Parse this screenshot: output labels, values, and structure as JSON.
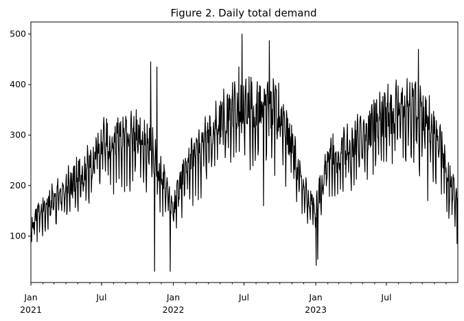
{
  "chart_data": {
    "type": "line",
    "title": "Figure 2. Daily total demand",
    "xlabel": "",
    "ylabel": "",
    "grid": false,
    "legend": "none",
    "line_color": "#000000",
    "xlim": [
      "2021-01-01",
      "2023-12-31"
    ],
    "ylim": [
      8,
      524
    ],
    "y_ticks": [
      100,
      200,
      300,
      400,
      500
    ],
    "x_major_ticks": [
      {
        "date": "2021-01-01",
        "label": "Jan",
        "year": "2021"
      },
      {
        "date": "2021-07-01",
        "label": "Jul",
        "year": ""
      },
      {
        "date": "2022-01-01",
        "label": "Jan",
        "year": "2022"
      },
      {
        "date": "2022-07-01",
        "label": "Jul",
        "year": ""
      },
      {
        "date": "2023-01-01",
        "label": "Jan",
        "year": "2023"
      },
      {
        "date": "2023-07-01",
        "label": "Jul",
        "year": ""
      }
    ],
    "trend": [
      [
        "2021-01-01",
        115
      ],
      [
        "2021-02-01",
        150
      ],
      [
        "2021-03-01",
        165
      ],
      [
        "2021-04-01",
        190
      ],
      [
        "2021-05-01",
        205
      ],
      [
        "2021-06-01",
        235
      ],
      [
        "2021-07-01",
        265
      ],
      [
        "2021-08-01",
        275
      ],
      [
        "2021-09-01",
        275
      ],
      [
        "2021-10-01",
        285
      ],
      [
        "2021-11-01",
        270
      ],
      [
        "2021-12-01",
        210
      ],
      [
        "2022-01-01",
        150
      ],
      [
        "2022-02-01",
        220
      ],
      [
        "2022-03-01",
        250
      ],
      [
        "2022-04-01",
        280
      ],
      [
        "2022-05-01",
        310
      ],
      [
        "2022-06-01",
        330
      ],
      [
        "2022-07-01",
        340
      ],
      [
        "2022-08-01",
        335
      ],
      [
        "2022-09-01",
        345
      ],
      [
        "2022-10-01",
        320
      ],
      [
        "2022-11-01",
        265
      ],
      [
        "2022-12-01",
        180
      ],
      [
        "2023-01-01",
        145
      ],
      [
        "2023-02-01",
        240
      ],
      [
        "2023-03-01",
        250
      ],
      [
        "2023-04-01",
        270
      ],
      [
        "2023-05-01",
        285
      ],
      [
        "2023-06-01",
        305
      ],
      [
        "2023-07-01",
        320
      ],
      [
        "2023-08-01",
        330
      ],
      [
        "2023-09-01",
        335
      ],
      [
        "2023-10-01",
        320
      ],
      [
        "2023-11-01",
        300
      ],
      [
        "2023-12-01",
        230
      ],
      [
        "2023-12-31",
        150
      ]
    ],
    "extremes": [
      [
        "2021-01-01",
        85
      ],
      [
        "2021-11-14",
        30
      ],
      [
        "2021-11-20",
        435
      ],
      [
        "2021-11-04",
        445
      ],
      [
        "2021-12-24",
        30
      ],
      [
        "2022-06-26",
        500
      ],
      [
        "2022-06-18",
        435
      ],
      [
        "2022-09-04",
        487
      ],
      [
        "2022-08-20",
        160
      ],
      [
        "2023-01-02",
        42
      ],
      [
        "2023-01-06",
        54
      ],
      [
        "2023-09-21",
        470
      ],
      [
        "2023-10-15",
        170
      ],
      [
        "2023-12-08",
        135
      ],
      [
        "2023-12-29",
        85
      ],
      [
        "2023-12-30",
        175
      ]
    ]
  }
}
